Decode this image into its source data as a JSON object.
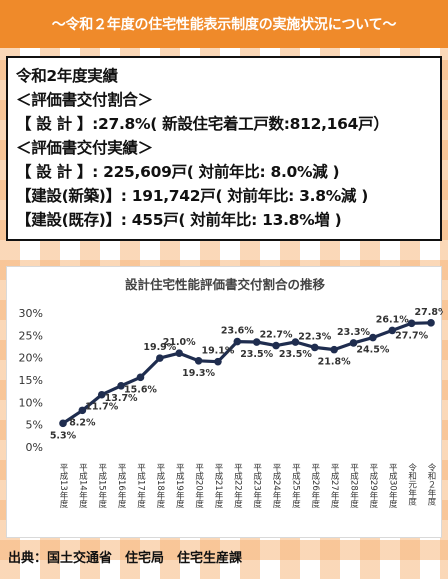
{
  "banner": {
    "title": "～令和２年度の住宅性能表示制度の実施状況について～"
  },
  "info": {
    "lines": [
      "令和2年度実績",
      "＜評価書交付割合＞",
      "【 設 計 】:27.8%( 新設住宅着工戸数:812,164戸）",
      "＜評価書交付実績＞",
      "【 設 計 】: 225,609戸( 対前年比: 8.0%減 )",
      "【建設(新築)】: 191,742戸( 対前年比: 3.8%減 )",
      "【建設(既存)】: 455戸( 対前年比: 13.8%増 )"
    ]
  },
  "chart_data": {
    "type": "line",
    "title": "設計住宅性能評価書交付割合の推移",
    "categories": [
      "平成13年度",
      "平成14年度",
      "平成15年度",
      "平成16年度",
      "平成17年度",
      "平成18年度",
      "平成19年度",
      "平成20年度",
      "平成21年度",
      "平成22年度",
      "平成23年度",
      "平成24年度",
      "平成25年度",
      "平成26年度",
      "平成27年度",
      "平成28年度",
      "平成29年度",
      "平成30年度",
      "令和元年度",
      "令和２年度"
    ],
    "series": [
      {
        "values": [
          5.3,
          8.2,
          11.7,
          13.7,
          15.6,
          19.9,
          21.0,
          19.3,
          19.1,
          23.6,
          23.5,
          22.7,
          23.5,
          22.3,
          21.8,
          23.3,
          24.5,
          26.1,
          27.7,
          27.8
        ]
      }
    ],
    "data_labels": [
      "5.3%",
      "8.2%",
      "11.7%",
      "13.7%",
      "15.6%",
      "19.9%",
      "21.0%",
      "19.3%",
      "19.1%",
      "23.6%",
      "23.5%",
      "22.7%",
      "23.5%",
      "22.3%",
      "21.8%",
      "23.3%",
      "24.5%",
      "26.1%",
      "27.7%",
      "27.8%"
    ],
    "y_ticks": [
      "0%",
      "5%",
      "10%",
      "15%",
      "20%",
      "25%",
      "30%"
    ],
    "ylim": [
      0,
      30
    ],
    "grid": false,
    "color": "#1f2d4f"
  },
  "source": {
    "text": "出典：国土交通省　住宅局　住宅生産課"
  }
}
